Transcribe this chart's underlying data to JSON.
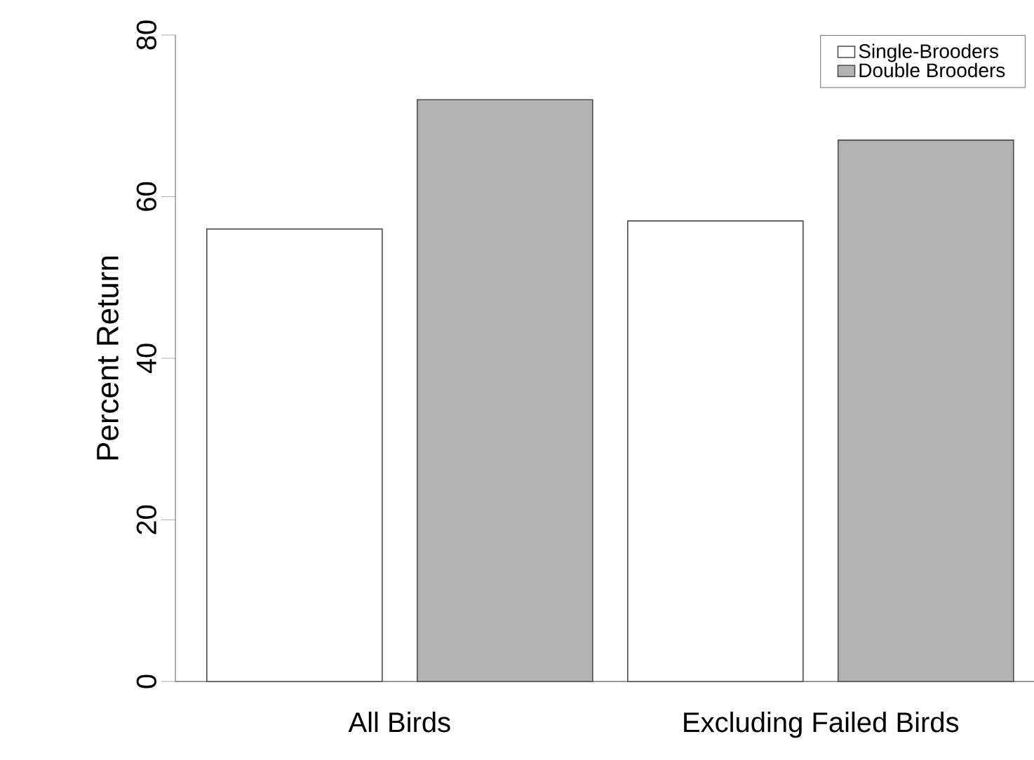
{
  "chart_data": {
    "type": "bar",
    "ylabel": "Percent Return",
    "categories": [
      "All Birds",
      "Excluding Failed Birds"
    ],
    "series": [
      {
        "name": "Single-Brooders",
        "color": "#ffffff",
        "values": [
          56,
          57
        ]
      },
      {
        "name": "Double Brooders",
        "color": "#b3b3b3",
        "values": [
          72,
          67
        ]
      }
    ],
    "ylim": [
      0,
      80
    ],
    "yticks": [
      0,
      20,
      40,
      60,
      80
    ],
    "legend": "top right"
  }
}
